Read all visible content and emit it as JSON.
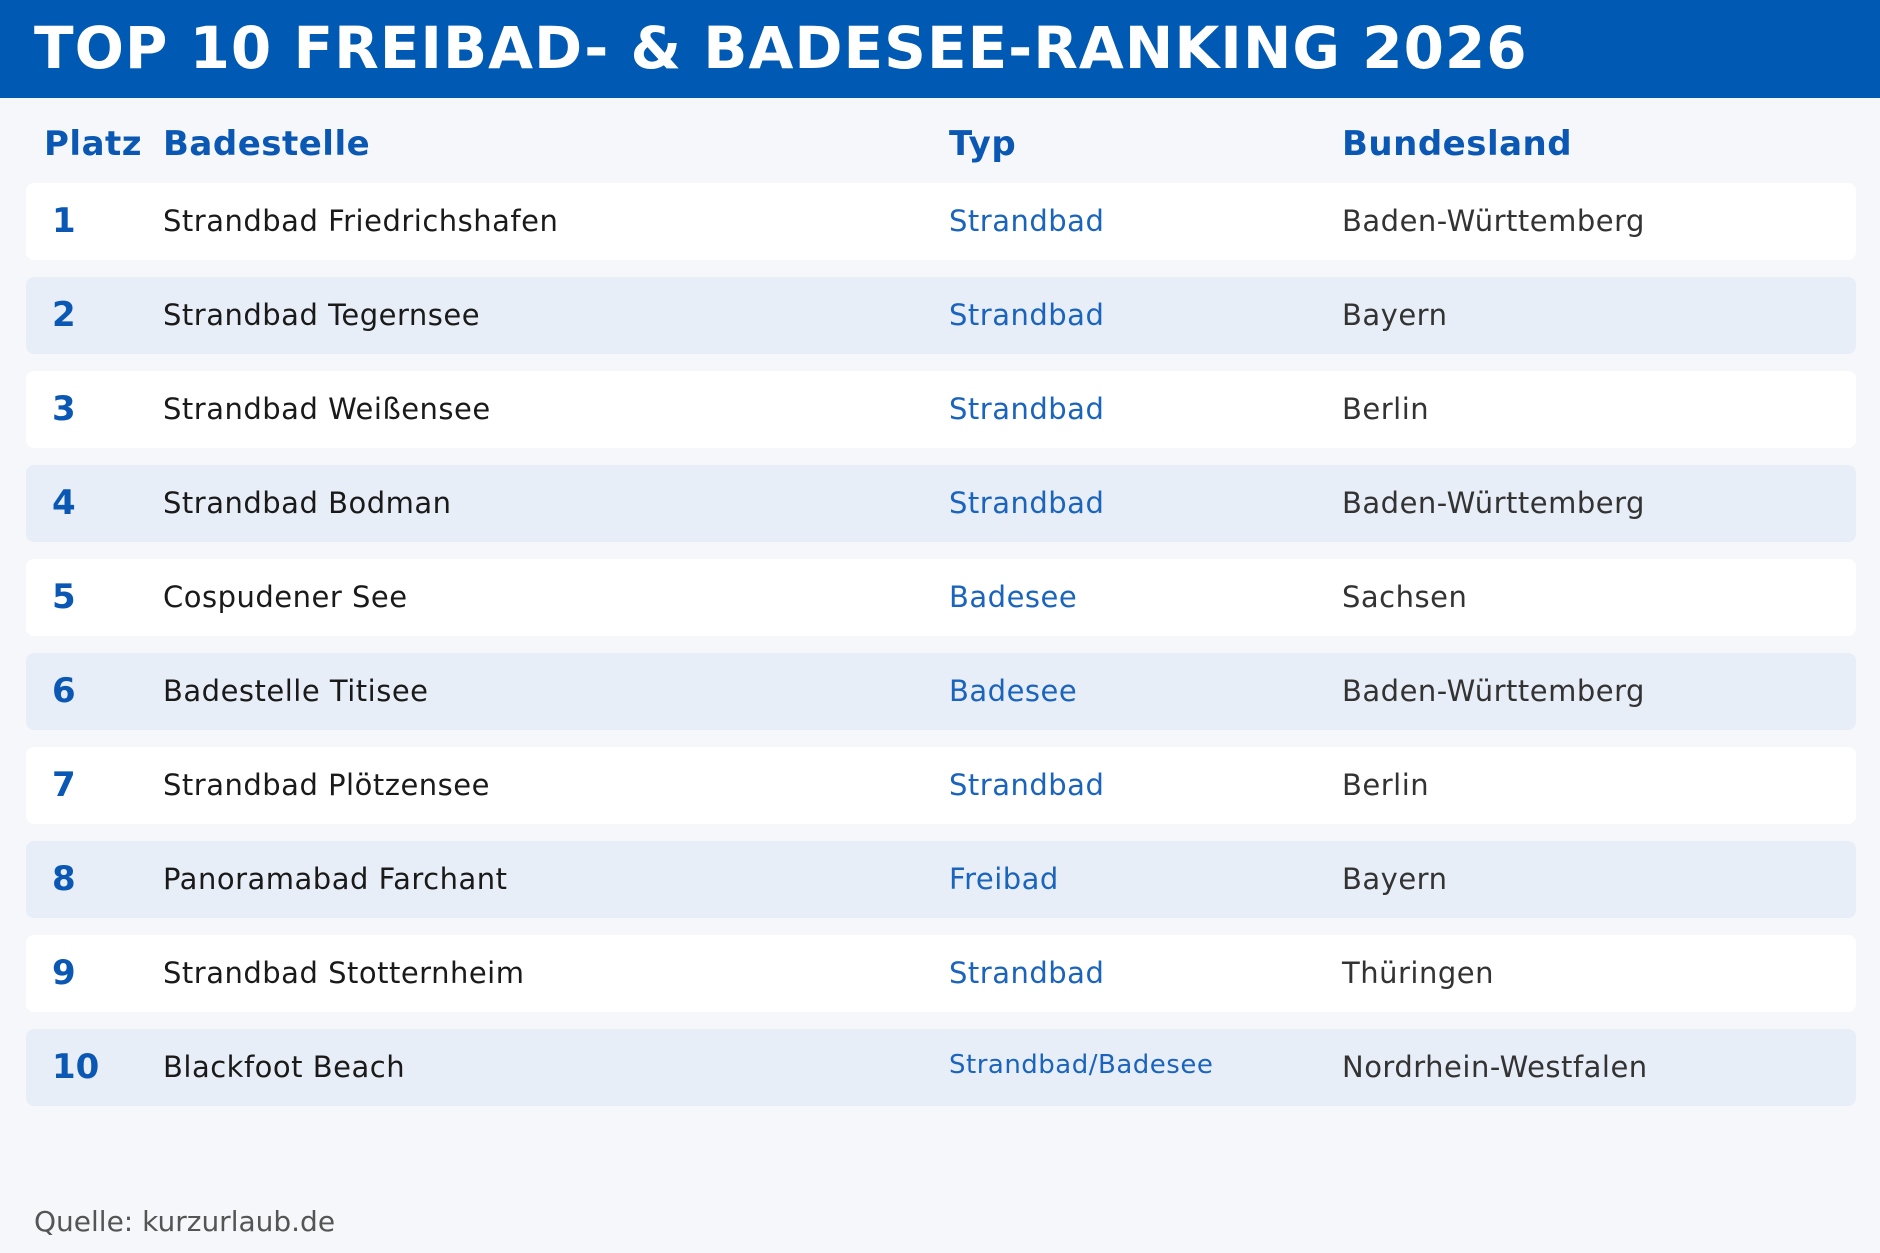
{
  "title": "TOP 10 FREIBAD- & BADESEE-RANKING 2026",
  "colors": {
    "title_bar": "#005ab4",
    "header_text": "#0a58b4",
    "type_text": "#1a64bd",
    "row_white": "#ffffff",
    "row_alt": "#e8eef7",
    "background": "#f5f7fa"
  },
  "chart_data": {
    "type": "table",
    "title": "TOP 10 FREIBAD- & BADESEE-RANKING 2026",
    "columns": [
      "Platz",
      "Badestelle",
      "Typ",
      "Bundesland"
    ],
    "rows": [
      {
        "rank": "1",
        "name": "Strandbad Friedrichshafen",
        "type": "Strandbad",
        "state": "Baden-Württemberg"
      },
      {
        "rank": "2",
        "name": "Strandbad Tegernsee",
        "type": "Strandbad",
        "state": "Bayern"
      },
      {
        "rank": "3",
        "name": "Strandbad Weißensee",
        "type": "Strandbad",
        "state": "Berlin"
      },
      {
        "rank": "4",
        "name": "Strandbad Bodman",
        "type": "Strandbad",
        "state": "Baden-Württemberg"
      },
      {
        "rank": "5",
        "name": "Cospudener See",
        "type": "Badesee",
        "state": "Sachsen"
      },
      {
        "rank": "6",
        "name": "Badestelle Titisee",
        "type": "Badesee",
        "state": "Baden-Württemberg"
      },
      {
        "rank": "7",
        "name": "Strandbad Plötzensee",
        "type": "Strandbad",
        "state": "Berlin"
      },
      {
        "rank": "8",
        "name": "Panoramabad Farchant",
        "type": "Freibad",
        "state": "Bayern"
      },
      {
        "rank": "9",
        "name": "Strandbad Stotternheim",
        "type": "Strandbad",
        "state": "Thüringen"
      },
      {
        "rank": "10",
        "name": "Blackfoot Beach",
        "type": "Strandbad/Badesee",
        "state": "Nordrhein-Westfalen"
      }
    ]
  },
  "source": "Quelle: kurzurlaub.de"
}
